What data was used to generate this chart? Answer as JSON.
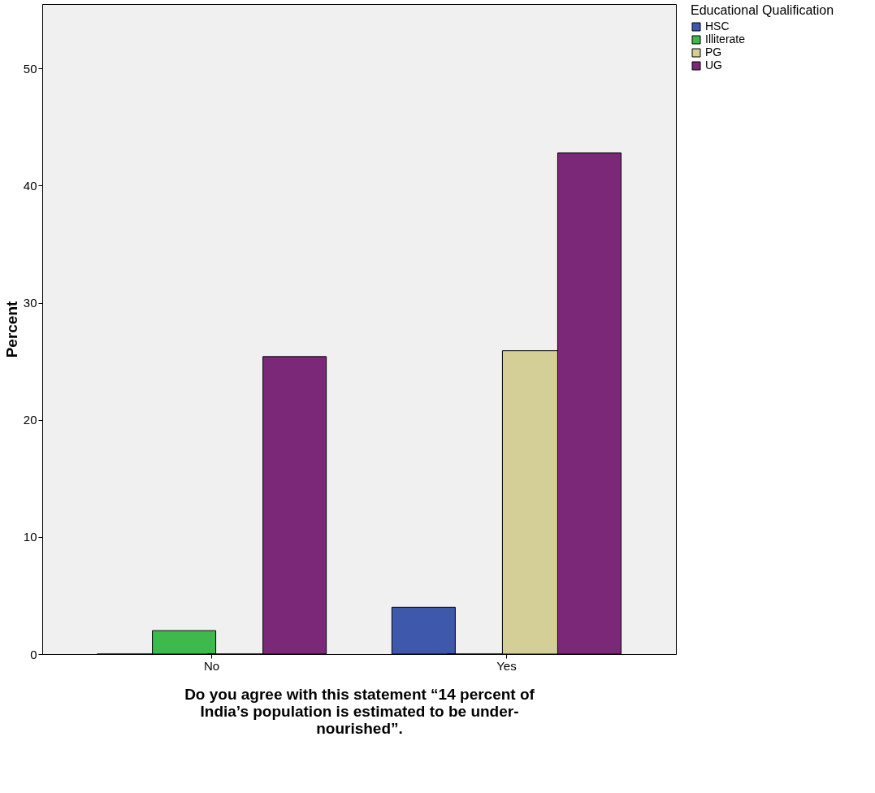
{
  "chart_data": {
    "type": "bar",
    "ylabel": "Percent",
    "xlabel": "Do you agree with this statement “14 percent of India’s population is estimated to be under-nourished”.",
    "legend_title": "Educational Qualification",
    "categories": [
      "No",
      "Yes"
    ],
    "series": [
      {
        "name": "HSC",
        "color": "#3e58ac",
        "values": [
          0,
          4.0
        ]
      },
      {
        "name": "Illiterate",
        "color": "#3eb94b",
        "values": [
          2.0,
          0
        ]
      },
      {
        "name": "PG",
        "color": "#d4cf96",
        "values": [
          0,
          25.9
        ]
      },
      {
        "name": "UG",
        "color": "#7b2878",
        "values": [
          25.4,
          42.8
        ]
      }
    ],
    "ylim": [
      0,
      55.5
    ],
    "yticks": [
      0,
      10,
      20,
      30,
      40,
      50
    ],
    "grid": false,
    "legend": "top right"
  }
}
